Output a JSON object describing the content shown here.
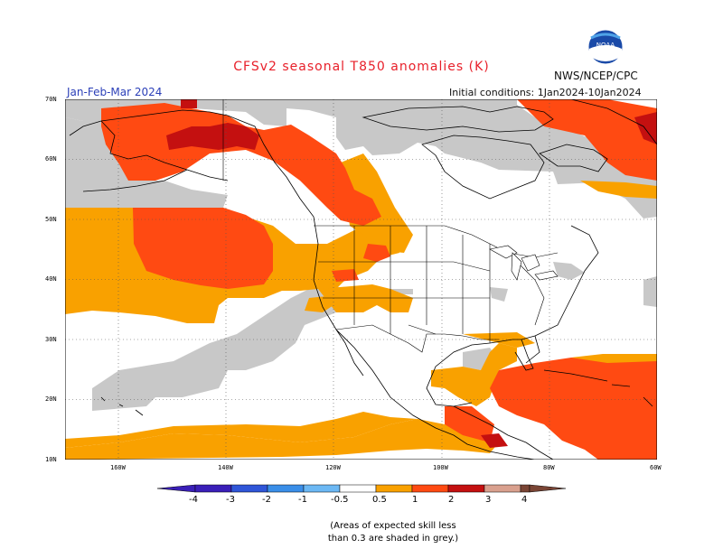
{
  "header": {
    "title": "CFSv2 seasonal T850 anomalies (K)",
    "period": "Jan-Feb-Mar 2024",
    "initial_conditions": "Initial conditions: 1Jan2024-10Jan2024",
    "agency": "NWS/NCEP/CPC",
    "logo_text": "NOAA"
  },
  "axes": {
    "lat_labels": [
      "70N",
      "60N",
      "50N",
      "40N",
      "30N",
      "20N",
      "10N"
    ],
    "lon_labels": [
      "160W",
      "140W",
      "120W",
      "100W",
      "80W",
      "60W"
    ]
  },
  "colorbar": {
    "labels": [
      "-4",
      "-3",
      "-2",
      "-1",
      "-0.5",
      "0.5",
      "1",
      "2",
      "3",
      "4"
    ],
    "colors": [
      "#3a1fb8",
      "#2f56d8",
      "#3a8ee8",
      "#6cb8f4",
      "#a9d9fb",
      "#ffffff",
      "#f9a100",
      "#ff4a12",
      "#c41010",
      "#d9a08e",
      "#7a4535"
    ]
  },
  "legend_colors": {
    "grey": "#c8c8c8",
    "anom_0_5_1": "#f9a100",
    "anom_1_2": "#ff4a12",
    "anom_2_3": "#c41010",
    "anom_3_4": "#d9a08e"
  },
  "note": {
    "line1": "(Areas of expected skill less",
    "line2": "than 0.3 are shaded in grey.)"
  }
}
